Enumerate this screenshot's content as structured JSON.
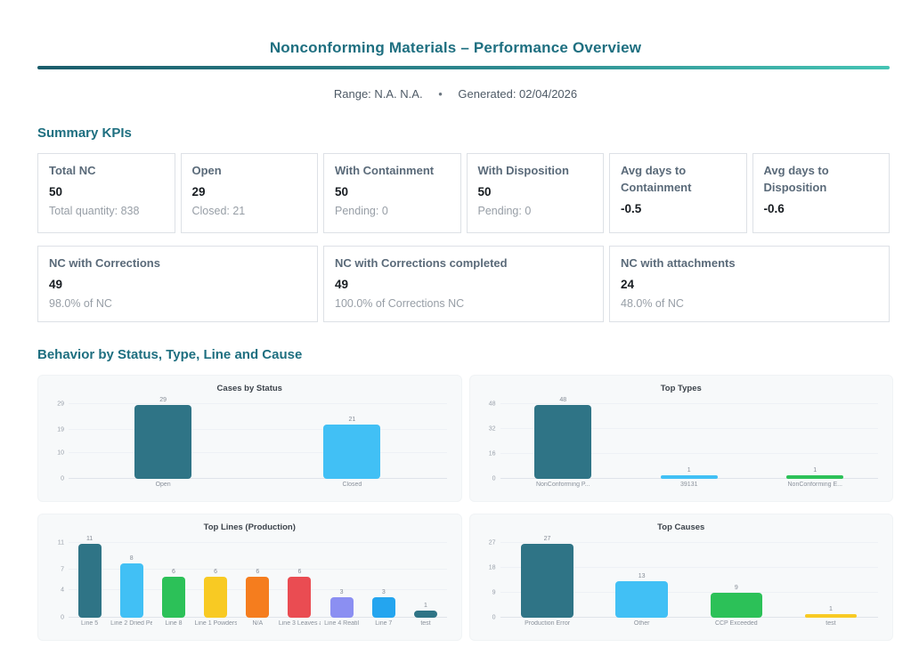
{
  "header": {
    "title": "Nonconforming Materials – Performance Overview"
  },
  "meta": {
    "range": "Range: N.A.  N.A.",
    "separator": "•",
    "generated": "Generated: 02/04/2026"
  },
  "sections": {
    "summary": "Summary KPIs",
    "behavior": "Behavior by Status, Type, Line and Cause"
  },
  "kpis_row1": [
    {
      "label": "Total NC",
      "value": "50",
      "sub": "Total quantity: 838"
    },
    {
      "label": "Open",
      "value": "29",
      "sub": "Closed: 21"
    },
    {
      "label": "With Containment",
      "value": "50",
      "sub": "Pending: 0"
    },
    {
      "label": "With Disposition",
      "value": "50",
      "sub": "Pending: 0"
    },
    {
      "label": "Avg days to Containment",
      "value": "-0.5",
      "sub": ""
    },
    {
      "label": "Avg days to Disposition",
      "value": "-0.6",
      "sub": ""
    }
  ],
  "kpis_row2": [
    {
      "label": "NC with Corrections",
      "value": "49",
      "sub": "98.0% of NC"
    },
    {
      "label": "NC with Corrections completed",
      "value": "49",
      "sub": "100.0% of Corrections NC"
    },
    {
      "label": "NC with attachments",
      "value": "24",
      "sub": "48.0% of NC"
    }
  ],
  "colors": {
    "accent_teal": "#1e6f80",
    "divider_from": "#1b5d6b",
    "divider_to": "#45c4b4",
    "bar_teal": "#2f7486",
    "bar_lightblue": "#41c0f5",
    "bar_green": "#2cc158",
    "bar_yellow": "#f8ca23",
    "bar_orange": "#f57d1e",
    "bar_red": "#ea4c52",
    "bar_purple": "#8b8ff2",
    "bar_blue": "#24a5ef"
  },
  "chart_data": [
    {
      "type": "bar",
      "title": "Cases by Status",
      "categories": [
        "Open",
        "Closed"
      ],
      "values": [
        29,
        21
      ],
      "colors": [
        "#2f7486",
        "#41c0f5"
      ],
      "yticks": [
        0,
        10,
        19,
        29
      ],
      "ylim": [
        0,
        29
      ],
      "xlabel": "",
      "ylabel": "",
      "grid": true,
      "legend": false
    },
    {
      "type": "bar",
      "title": "Top Types",
      "categories": [
        "NonConforming P...",
        "39131",
        "NonConforming E..."
      ],
      "values": [
        48,
        1,
        1
      ],
      "colors": [
        "#2f7486",
        "#41c0f5",
        "#2cc158"
      ],
      "yticks": [
        0,
        16,
        32,
        48
      ],
      "ylim": [
        0,
        48
      ],
      "xlabel": "",
      "ylabel": "",
      "grid": true,
      "legend": false
    },
    {
      "type": "bar",
      "title": "Top Lines (Production)",
      "categories": [
        "Line 5",
        "Line 2 Dried Pe...",
        "Line 8",
        "Line 1 Powders",
        "N/A",
        "Line 3 Leaves a...",
        "Line 4 Reatil",
        "Line 7",
        "test"
      ],
      "values": [
        11,
        8,
        6,
        6,
        6,
        6,
        3,
        3,
        1
      ],
      "colors": [
        "#2f7486",
        "#41c0f5",
        "#2cc158",
        "#f8ca23",
        "#f57d1e",
        "#ea4c52",
        "#8b8ff2",
        "#24a5ef",
        "#2f7486"
      ],
      "yticks": [
        0,
        4,
        7,
        11
      ],
      "ylim": [
        0,
        11
      ],
      "xlabel": "",
      "ylabel": "",
      "grid": true,
      "legend": false
    },
    {
      "type": "bar",
      "title": "Top Causes",
      "categories": [
        "Production Error",
        "Other",
        "CCP Exceeded",
        "test"
      ],
      "values": [
        27,
        13,
        9,
        1
      ],
      "colors": [
        "#2f7486",
        "#41c0f5",
        "#2cc158",
        "#f8ca23"
      ],
      "yticks": [
        0,
        9,
        18,
        27
      ],
      "ylim": [
        0,
        27
      ],
      "xlabel": "",
      "ylabel": "",
      "grid": true,
      "legend": false
    }
  ]
}
